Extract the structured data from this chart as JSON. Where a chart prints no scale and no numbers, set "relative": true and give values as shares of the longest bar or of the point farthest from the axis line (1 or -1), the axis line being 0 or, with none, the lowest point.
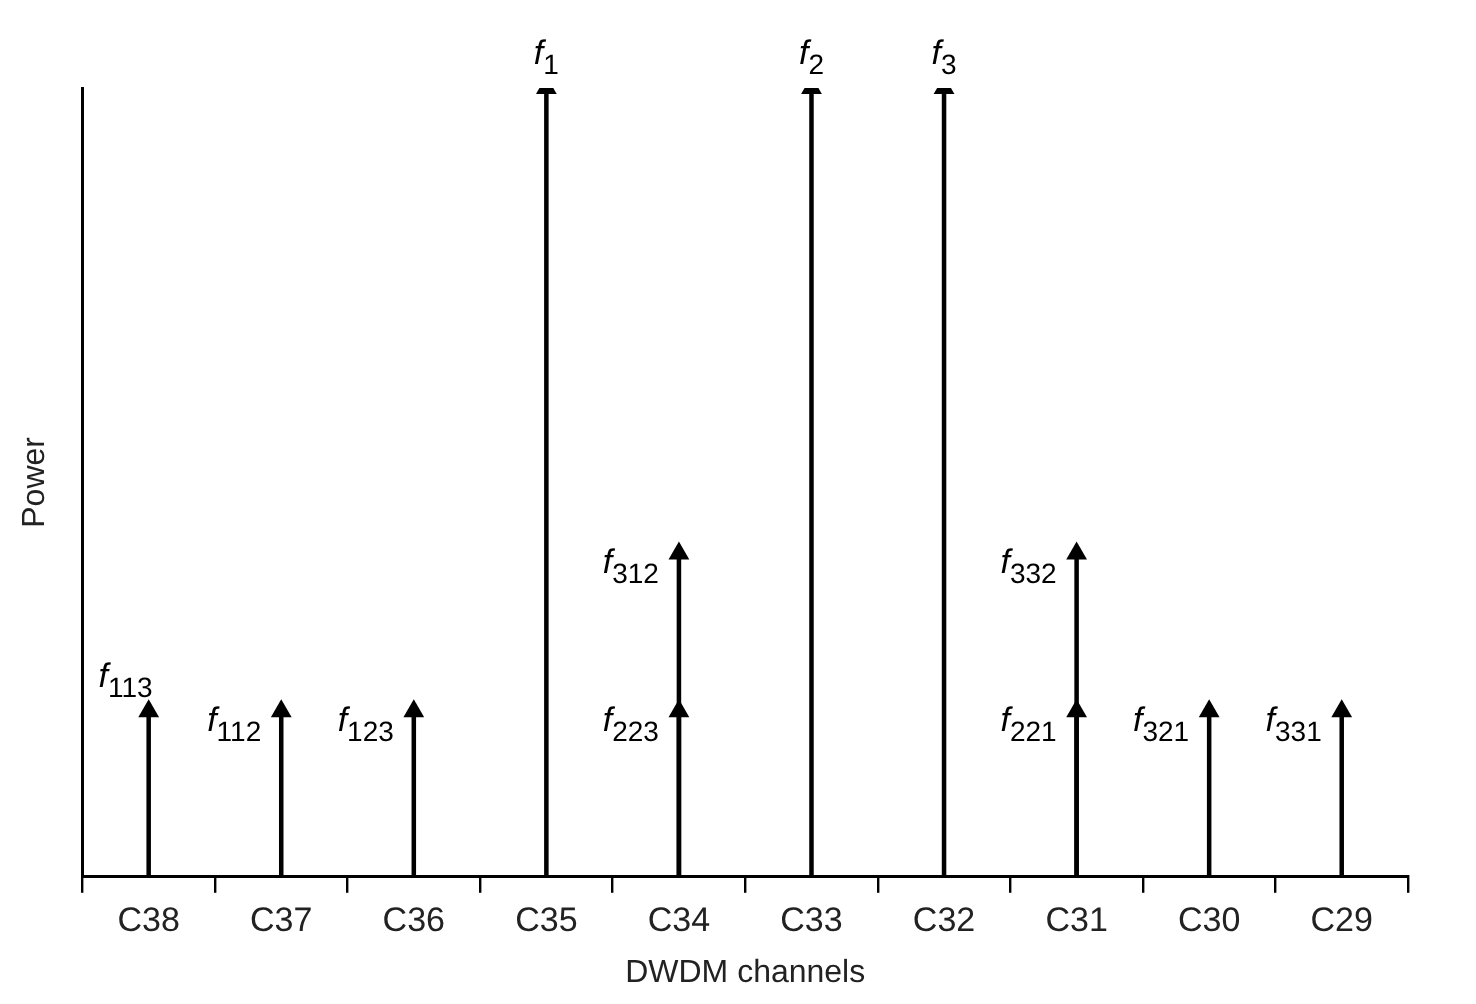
{
  "chart_data": {
    "type": "lollipop",
    "relative": true,
    "marker": "triangle",
    "xlabel": "DWDM channels",
    "ylabel": "Power",
    "categories": [
      "C38",
      "C37",
      "C36",
      "C35",
      "C34",
      "C33",
      "C32",
      "C31",
      "C30",
      "C29"
    ],
    "series": [
      {
        "color": "#000000",
        "values": [
          0.21,
          0.21,
          0.21,
          1,
          0.21,
          1,
          1,
          0.21,
          0.21,
          0.21
        ]
      },
      {
        "color": "#000000",
        "values": [
          null,
          null,
          null,
          null,
          0.41,
          null,
          null,
          0.41,
          null,
          null
        ]
      }
    ],
    "annotations": [
      {
        "text": "f$_{113}$",
        "x": "C38",
        "y": 0.21
      },
      {
        "text": "f$_{112}$",
        "x": "C37",
        "y": 0.21
      },
      {
        "text": "f$_{123}$",
        "x": "C36",
        "y": 0.21
      },
      {
        "text": "f$_{1}$",
        "x": "C35",
        "y": 1
      },
      {
        "text": "f$_{223}$",
        "x": "C34",
        "y": 0.21
      },
      {
        "text": "f$_{312}$",
        "x": "C34",
        "y": 0.41
      },
      {
        "text": "f$_{2}$",
        "x": "C33",
        "y": 1
      },
      {
        "text": "f$_{3}$",
        "x": "C32",
        "y": 1
      },
      {
        "text": "f$_{221}$",
        "x": "C31",
        "y": 0.21
      },
      {
        "text": "f$_{332}$",
        "x": "C31",
        "y": 0.41
      },
      {
        "text": "f$_{321}$",
        "x": "C30",
        "y": 0.21
      },
      {
        "text": "f$_{331}$",
        "x": "C29",
        "y": 0.21
      }
    ],
    "grid": false,
    "legend": false
  }
}
